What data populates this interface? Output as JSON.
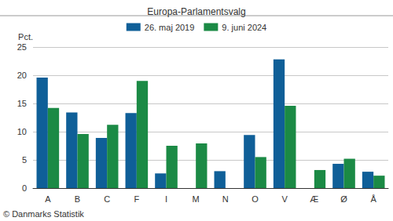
{
  "chart_data": {
    "type": "bar",
    "title": "Europa-Parlamentsvalg",
    "ylabel": "Pct.",
    "annotations": [
      "© Danmarks Statistik"
    ],
    "categories": [
      "A",
      "B",
      "C",
      "F",
      "I",
      "M",
      "N",
      "O",
      "V",
      "Æ",
      "Ø",
      "Å"
    ],
    "series": [
      {
        "name": "26. maj 2019",
        "color": "#0f5f98",
        "values": [
          19.6,
          13.4,
          8.9,
          13.3,
          2.6,
          null,
          3.0,
          9.4,
          22.8,
          null,
          4.3,
          2.9
        ]
      },
      {
        "name": "9. juni 2024",
        "color": "#1b8a45",
        "values": [
          14.2,
          9.6,
          11.2,
          19.0,
          7.5,
          7.9,
          null,
          5.5,
          14.6,
          3.2,
          5.2,
          2.2
        ]
      }
    ],
    "ylim": [
      0,
      25
    ],
    "yticks": [
      0,
      5,
      10,
      15,
      20,
      25
    ],
    "grid": true,
    "legend": "top"
  }
}
